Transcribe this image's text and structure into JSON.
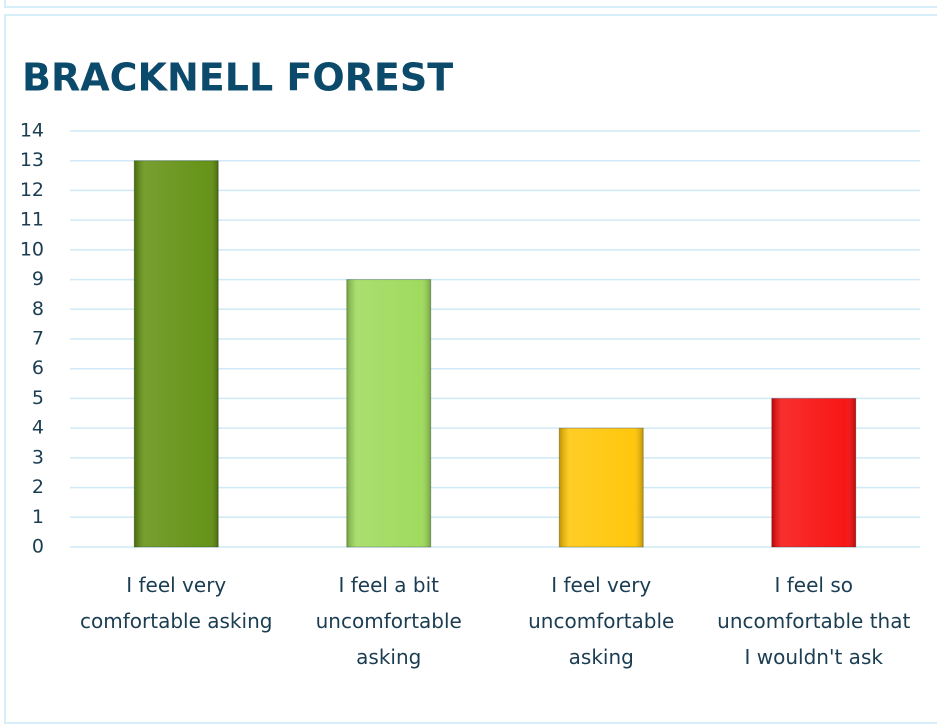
{
  "chart_data": {
    "type": "bar",
    "title": "BRACKNELL FOREST",
    "categories": [
      "I feel very comfortable asking",
      "I feel a bit uncomfortable asking",
      "I feel very uncomfortable asking",
      "I feel so uncomfortable that I wouldn't ask"
    ],
    "values": [
      13,
      9,
      4,
      5
    ],
    "colors": [
      "#5e8e0c",
      "#9bd957",
      "#ffc400",
      "#f70a0a"
    ],
    "ylim": [
      0,
      14
    ],
    "yticks": [
      0,
      1,
      2,
      3,
      4,
      5,
      6,
      7,
      8,
      9,
      10,
      11,
      12,
      13,
      14
    ],
    "grid": true
  }
}
